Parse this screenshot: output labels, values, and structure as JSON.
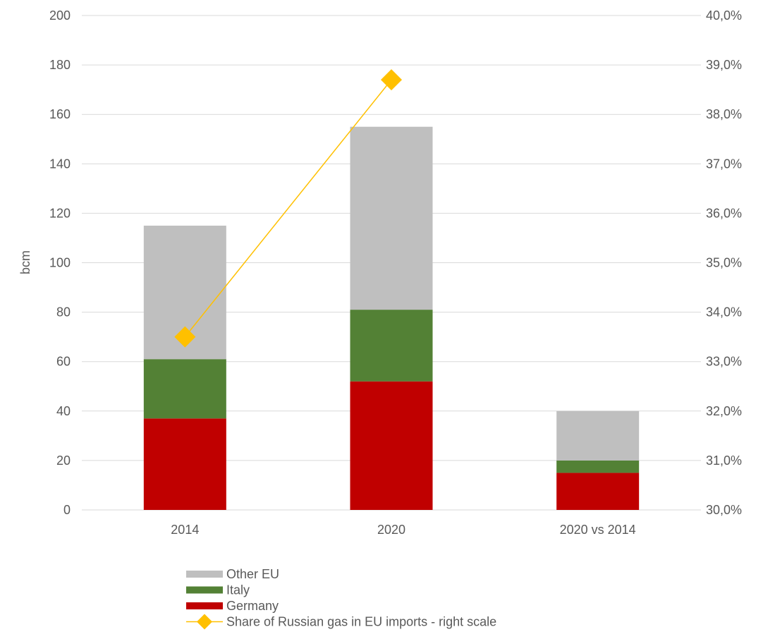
{
  "chart_data": {
    "type": "bar",
    "stacked": true,
    "categories": [
      "2014",
      "2020",
      "2020 vs 2014"
    ],
    "series": [
      {
        "name": "Germany",
        "color": "#c00000",
        "values": [
          37,
          52,
          15
        ]
      },
      {
        "name": "Italy",
        "color": "#538135",
        "values": [
          24,
          29,
          5
        ]
      },
      {
        "name": "Other EU",
        "color": "#bfbfbf",
        "values": [
          54,
          74,
          20
        ]
      }
    ],
    "line_series": {
      "name": "Share of Russian gas in EU imports - right scale",
      "color": "#ffc000",
      "marker": "diamond",
      "axis": "right",
      "x": [
        "2014",
        "2020"
      ],
      "values": [
        33.5,
        38.7
      ]
    },
    "ylabel": "bcm",
    "ylim": [
      0,
      200
    ],
    "yticks": [
      0,
      20,
      40,
      60,
      80,
      100,
      120,
      140,
      160,
      180,
      200
    ],
    "y2lim": [
      30.0,
      40.0
    ],
    "y2ticks": [
      "30,0%",
      "31,0%",
      "32,0%",
      "33,0%",
      "34,0%",
      "35,0%",
      "36,0%",
      "37,0%",
      "38,0%",
      "39,0%",
      "40,0%"
    ],
    "grid": true,
    "legend_position": "bottom",
    "legend_order": [
      "Other EU",
      "Italy",
      "Germany",
      "Share of Russian gas in EU imports - right scale"
    ]
  }
}
